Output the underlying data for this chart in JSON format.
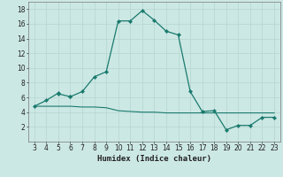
{
  "xlabel": "Humidex (Indice chaleur)",
  "line1_x": [
    3,
    4,
    5,
    5,
    6,
    6,
    7,
    8,
    9,
    10,
    11,
    12,
    13,
    14,
    15,
    16,
    17,
    18,
    19,
    20,
    21,
    22,
    23
  ],
  "line1_y": [
    4.8,
    5.6,
    6.6,
    6.5,
    6.1,
    6.1,
    6.8,
    8.8,
    9.5,
    16.4,
    16.4,
    17.8,
    16.5,
    15.0,
    14.5,
    6.8,
    4.1,
    4.2,
    1.6,
    2.2,
    2.2,
    3.3,
    3.3
  ],
  "line2_x": [
    3,
    4,
    5,
    6,
    7,
    8,
    9,
    10,
    11,
    12,
    13,
    14,
    15,
    16,
    17,
    18,
    19,
    20,
    21,
    22,
    23
  ],
  "line2_y": [
    4.8,
    4.8,
    4.8,
    4.8,
    4.7,
    4.7,
    4.6,
    4.2,
    4.1,
    4.0,
    4.0,
    3.9,
    3.9,
    3.9,
    3.9,
    3.9,
    3.9,
    3.9,
    3.9,
    3.9,
    3.9
  ],
  "line_color": "#1a7a6e",
  "bg_color": "#cce8e4",
  "grid_color": "#b8d8d4",
  "ylim": [
    0,
    19
  ],
  "xlim": [
    2.5,
    23.5
  ],
  "yticks": [
    2,
    4,
    6,
    8,
    10,
    12,
    14,
    16,
    18
  ],
  "xticks": [
    3,
    4,
    5,
    6,
    7,
    8,
    9,
    10,
    11,
    12,
    13,
    14,
    15,
    16,
    17,
    18,
    19,
    20,
    21,
    22,
    23
  ],
  "tick_fontsize": 5.5,
  "xlabel_fontsize": 6.5
}
